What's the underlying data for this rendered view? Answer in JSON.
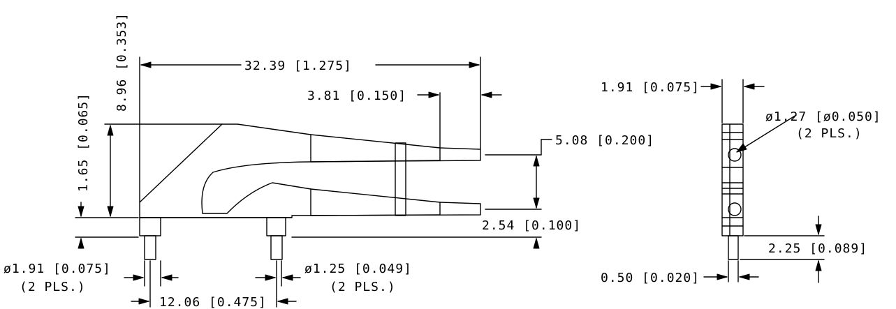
{
  "dimensions": {
    "overall_length": "32.39 [1.275]",
    "overall_height": "8.96 [0.353]",
    "height_to_bend": "1.65 [0.065]",
    "tip_length": "3.81 [0.150]",
    "prong_spacing": "5.08 [0.200]",
    "base_offset": "2.54 [0.100]",
    "pin_large_dia": "ø1.91 [0.075]",
    "pin_large_qty": "(2 PLS.)",
    "pin_small_dia": "ø1.25 [0.049]",
    "pin_small_qty": "(2 PLS.)",
    "pin_spacing": "12.06 [0.475]",
    "side_thickness": "1.91 [0.075]",
    "hole_dia": "ø1.27 [ø0.050]",
    "hole_qty": "(2 PLS.)",
    "side_pin_length": "2.25 [0.089]",
    "side_pin_width": "0.50 [0.020]"
  }
}
